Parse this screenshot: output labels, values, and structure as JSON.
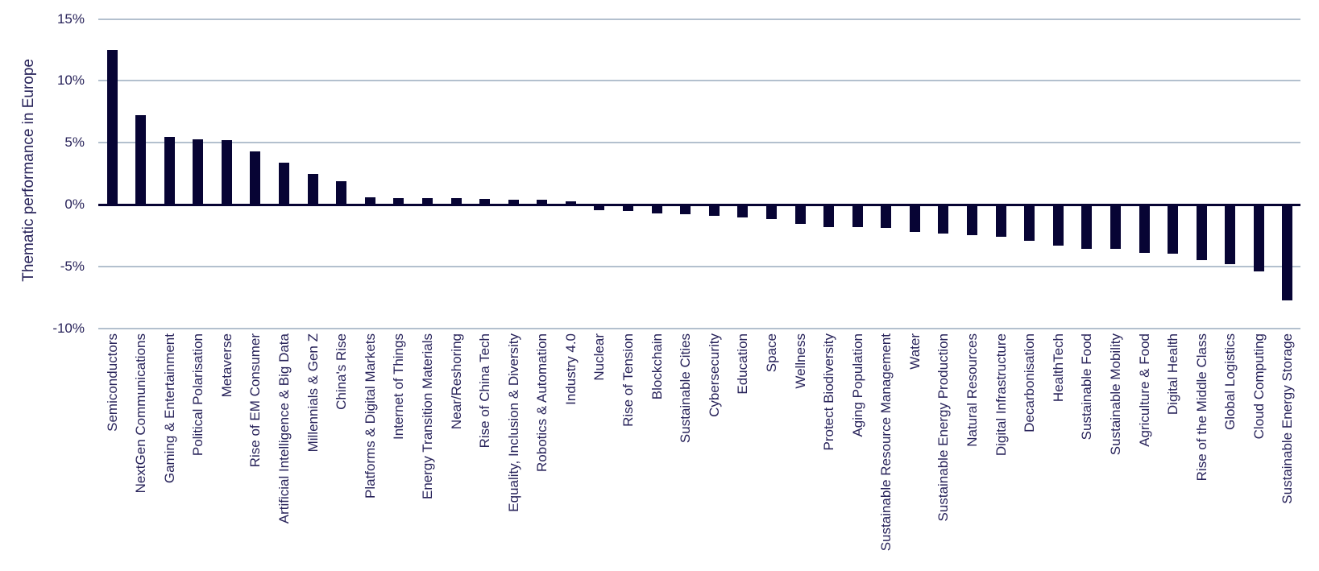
{
  "chart_data": {
    "type": "bar",
    "title": "",
    "ylabel": "Thematic performance in Europe",
    "xlabel": "",
    "ylim": [
      -10,
      15
    ],
    "grid": true,
    "legend": "none",
    "yticks": [
      15,
      10,
      5,
      0,
      -5,
      -10
    ],
    "ytick_labels": [
      "15%",
      "10%",
      "5%",
      "0%",
      "-5%",
      "-10%"
    ],
    "colors": {
      "bar": "#070434",
      "gridline": "#b3c0ce",
      "zero_line": "#070434",
      "text": "#28235a",
      "background": "#ffffff"
    },
    "categories": [
      "Semiconductors",
      "NextGen Communications",
      "Gaming & Entertainment",
      "Political Polarisation",
      "Metaverse",
      "Rise of EM Consumer",
      "Artificial Intelligence & Big Data",
      "Millennials & Gen Z",
      "China's Rise",
      "Platforms & Digital Markets",
      "Internet of Things",
      "Energy Transition Materials",
      "Near/Reshoring",
      "Rise of China Tech",
      "Equality, Inclusion & Diversity",
      "Robotics & Automation",
      "Industry 4.0",
      "Nuclear",
      "Rise of Tension",
      "Blockchain",
      "Sustainable Cities",
      "Cybersecurity",
      "Education",
      "Space",
      "Wellness",
      "Protect Biodiversity",
      "Aging Population",
      "Sustainable Resource Management",
      "Water",
      "Sustainable Energy Production",
      "Natural Resources",
      "Digital Infrastructure",
      "Decarbonisation",
      "HealthTech",
      "Sustainable Food",
      "Sustainable Mobility",
      "Agriculture & Food",
      "Digital Health",
      "Rise of the Middle Class",
      "Global Logistics",
      "Cloud Computing",
      "Sustainable Energy Storage"
    ],
    "values": [
      12.5,
      7.2,
      5.5,
      5.3,
      5.2,
      4.3,
      3.4,
      2.5,
      1.9,
      0.6,
      0.55,
      0.5,
      0.5,
      0.45,
      0.4,
      0.4,
      0.25,
      -0.45,
      -0.5,
      -0.7,
      -0.8,
      -0.9,
      -1.05,
      -1.2,
      -1.55,
      -1.8,
      -1.85,
      -1.9,
      -2.2,
      -2.35,
      -2.45,
      -2.6,
      -2.95,
      -3.3,
      -3.55,
      -3.6,
      -3.9,
      -4.0,
      -4.5,
      -4.85,
      -5.4,
      -7.75
    ]
  }
}
